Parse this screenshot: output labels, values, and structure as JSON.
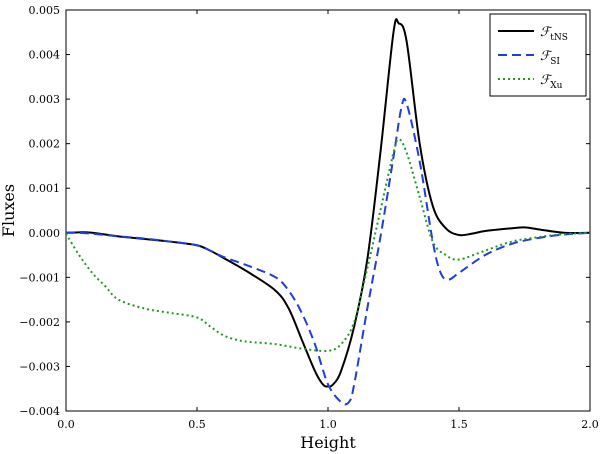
{
  "chart_data": {
    "type": "line",
    "xlabel": "Height",
    "ylabel": "Fluxes",
    "xlim": [
      0.0,
      2.0
    ],
    "ylim": [
      -0.004,
      0.005
    ],
    "x_ticks": [
      "0.0",
      "0.5",
      "1.0",
      "1.5",
      "2.0"
    ],
    "y_ticks": [
      "−0.004",
      "−0.003",
      "−0.002",
      "−0.001",
      "0.000",
      "0.001",
      "0.002",
      "0.003",
      "0.004",
      "0.005"
    ],
    "legend_position": "top-right",
    "series": [
      {
        "name": "ℱ",
        "subscript": "tNS",
        "color": "#000000",
        "style": "solid",
        "points": [
          [
            0.0,
            0.0
          ],
          [
            0.05,
            1e-05
          ],
          [
            0.1,
            0.0
          ],
          [
            0.2,
            -8e-05
          ],
          [
            0.3,
            -0.00014
          ],
          [
            0.4,
            -0.0002
          ],
          [
            0.5,
            -0.00028
          ],
          [
            0.55,
            -0.0004
          ],
          [
            0.6,
            -0.00056
          ],
          [
            0.7,
            -0.0009
          ],
          [
            0.8,
            -0.0013
          ],
          [
            0.85,
            -0.0017
          ],
          [
            0.9,
            -0.0024
          ],
          [
            0.95,
            -0.0031
          ],
          [
            0.98,
            -0.0034
          ],
          [
            1.0,
            -0.00345
          ],
          [
            1.02,
            -0.0034
          ],
          [
            1.05,
            -0.0031
          ],
          [
            1.1,
            -0.0021
          ],
          [
            1.15,
            -0.0006
          ],
          [
            1.2,
            0.0018
          ],
          [
            1.25,
            0.0045
          ],
          [
            1.27,
            0.0047
          ],
          [
            1.3,
            0.0043
          ],
          [
            1.35,
            0.002
          ],
          [
            1.4,
            0.0006
          ],
          [
            1.45,
            0.0001
          ],
          [
            1.5,
            -5e-05
          ],
          [
            1.55,
            -2e-05
          ],
          [
            1.6,
            4e-05
          ],
          [
            1.7,
            0.0001
          ],
          [
            1.75,
            0.00012
          ],
          [
            1.8,
            8e-05
          ],
          [
            1.9,
            0.0
          ],
          [
            2.0,
            0.0
          ]
        ]
      },
      {
        "name": "ℱ",
        "subscript": "SI",
        "color": "#1f3fd6",
        "style": "dashed",
        "points": [
          [
            0.0,
            0.0
          ],
          [
            0.05,
            0.0
          ],
          [
            0.1,
            -2e-05
          ],
          [
            0.2,
            -8e-05
          ],
          [
            0.3,
            -0.00013
          ],
          [
            0.4,
            -0.0002
          ],
          [
            0.5,
            -0.00028
          ],
          [
            0.55,
            -0.0004
          ],
          [
            0.6,
            -0.00054
          ],
          [
            0.7,
            -0.00075
          ],
          [
            0.8,
            -0.001
          ],
          [
            0.85,
            -0.0013
          ],
          [
            0.9,
            -0.0018
          ],
          [
            0.95,
            -0.0025
          ],
          [
            1.0,
            -0.0034
          ],
          [
            1.05,
            -0.0038
          ],
          [
            1.08,
            -0.0038
          ],
          [
            1.1,
            -0.0034
          ],
          [
            1.15,
            -0.0017
          ],
          [
            1.2,
            -0.0001
          ],
          [
            1.25,
            0.0017
          ],
          [
            1.28,
            0.0028
          ],
          [
            1.3,
            0.0029
          ],
          [
            1.35,
            0.0016
          ],
          [
            1.4,
            -0.0002
          ],
          [
            1.43,
            -0.0009
          ],
          [
            1.46,
            -0.00105
          ],
          [
            1.5,
            -0.0009
          ],
          [
            1.6,
            -0.0005
          ],
          [
            1.7,
            -0.00025
          ],
          [
            1.8,
            -0.00012
          ],
          [
            1.9,
            -4e-05
          ],
          [
            2.0,
            0.0
          ]
        ]
      },
      {
        "name": "ℱ",
        "subscript": "Xu",
        "color": "#1e9a1e",
        "style": "dotted",
        "points": [
          [
            0.0,
            -2e-05
          ],
          [
            0.05,
            -0.0005
          ],
          [
            0.1,
            -0.0009
          ],
          [
            0.15,
            -0.0012
          ],
          [
            0.2,
            -0.0015
          ],
          [
            0.3,
            -0.0017
          ],
          [
            0.4,
            -0.0018
          ],
          [
            0.5,
            -0.0019
          ],
          [
            0.55,
            -0.0021
          ],
          [
            0.6,
            -0.0023
          ],
          [
            0.65,
            -0.0024
          ],
          [
            0.7,
            -0.00245
          ],
          [
            0.8,
            -0.0025
          ],
          [
            0.9,
            -0.0026
          ],
          [
            1.0,
            -0.00265
          ],
          [
            1.05,
            -0.0025
          ],
          [
            1.1,
            -0.002
          ],
          [
            1.15,
            -0.0008
          ],
          [
            1.2,
            0.0005
          ],
          [
            1.25,
            0.0018
          ],
          [
            1.27,
            0.0021
          ],
          [
            1.3,
            0.0018
          ],
          [
            1.35,
            0.0008
          ],
          [
            1.4,
            -0.0002
          ],
          [
            1.45,
            -0.0005
          ],
          [
            1.5,
            -0.0006
          ],
          [
            1.6,
            -0.0004
          ],
          [
            1.7,
            -0.0002
          ],
          [
            1.8,
            -0.0001
          ],
          [
            1.9,
            -3e-05
          ],
          [
            2.0,
            0.0
          ]
        ]
      }
    ]
  }
}
